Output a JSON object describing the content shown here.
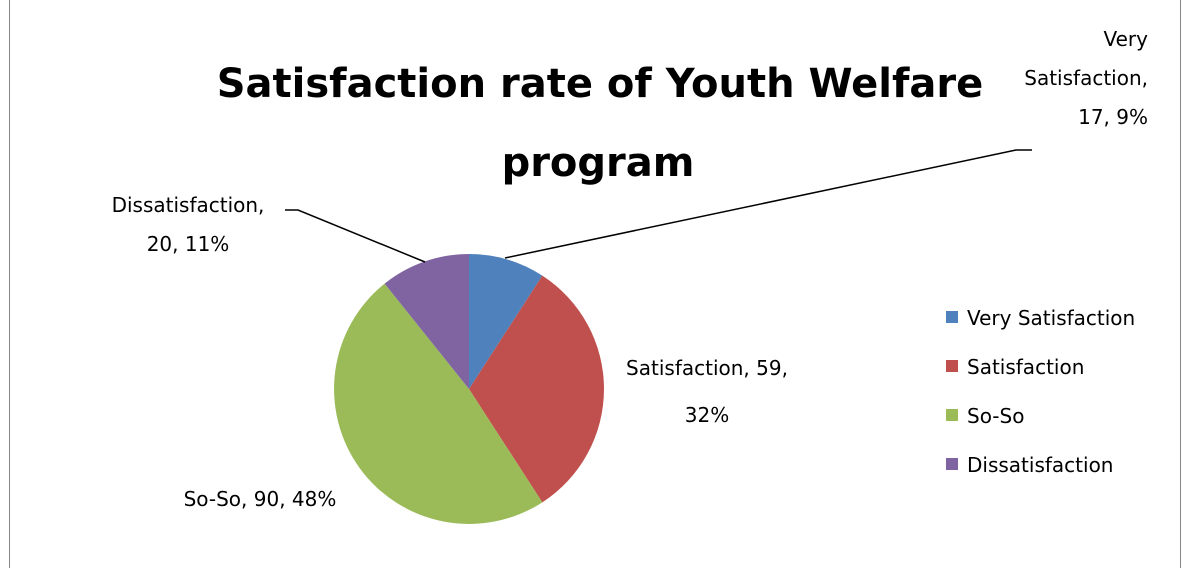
{
  "chart_data": {
    "type": "pie",
    "title": "Satisfaction rate of Youth Welfare program",
    "title_lines": [
      "Satisfaction rate of Youth Welfare",
      "program"
    ],
    "slices": [
      {
        "name": "Very Satisfaction",
        "value": 17,
        "percent": "9%",
        "color": "#4f81bd",
        "label_lines": [
          "Very",
          "Satisfaction,",
          "17, 9%"
        ]
      },
      {
        "name": "Satisfaction",
        "value": 59,
        "percent": "32%",
        "color": "#c0504d",
        "label_lines": [
          "Satisfaction, 59,",
          "32%"
        ]
      },
      {
        "name": "So-So",
        "value": 90,
        "percent": "48%",
        "color": "#9bbb59",
        "label_lines": [
          "So-So, 90, 48%"
        ]
      },
      {
        "name": "Dissatisfaction",
        "value": 20,
        "percent": "11%",
        "color": "#8064a2",
        "label_lines": [
          "Dissatisfaction,",
          "20, 11%"
        ]
      }
    ],
    "legend_position": "right"
  }
}
